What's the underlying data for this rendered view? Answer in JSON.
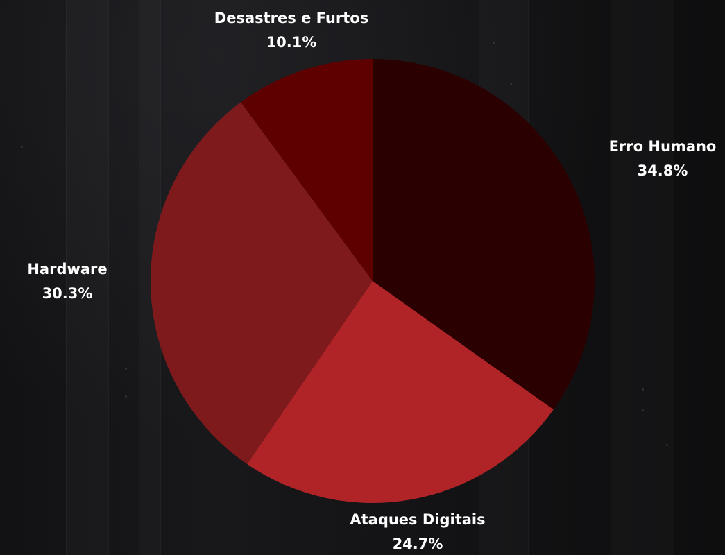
{
  "chart_data": {
    "type": "pie",
    "categories": [
      "Erro Humano",
      "Ataques Digitais",
      "Hardware",
      "Desastres e Furtos"
    ],
    "values": [
      34.8,
      24.7,
      30.3,
      10.1
    ],
    "labels": [
      "34.8%",
      "24.7%",
      "30.3%",
      "10.1%"
    ],
    "colors": [
      "#2b0000",
      "#b02428",
      "#7e1a1c",
      "#5e0000"
    ],
    "start_angle": "12 o'clock",
    "direction": "clockwise",
    "legend": "none"
  }
}
